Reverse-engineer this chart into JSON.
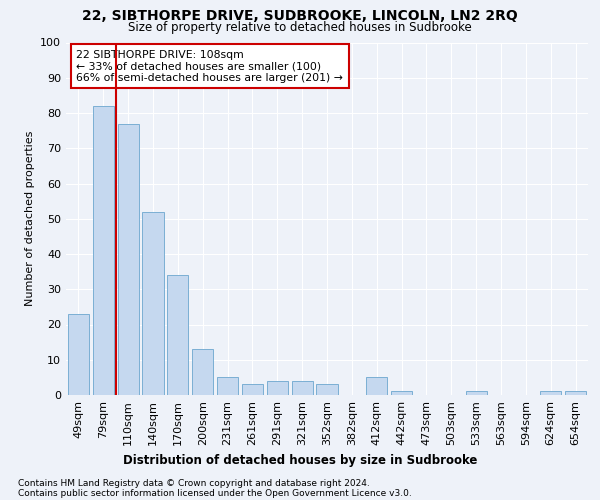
{
  "title": "22, SIBTHORPE DRIVE, SUDBROOKE, LINCOLN, LN2 2RQ",
  "subtitle": "Size of property relative to detached houses in Sudbrooke",
  "xlabel": "Distribution of detached houses by size in Sudbrooke",
  "ylabel": "Number of detached properties",
  "categories": [
    "49sqm",
    "79sqm",
    "110sqm",
    "140sqm",
    "170sqm",
    "200sqm",
    "231sqm",
    "261sqm",
    "291sqm",
    "321sqm",
    "352sqm",
    "382sqm",
    "412sqm",
    "442sqm",
    "473sqm",
    "503sqm",
    "533sqm",
    "563sqm",
    "594sqm",
    "624sqm",
    "654sqm"
  ],
  "values": [
    23,
    82,
    77,
    52,
    34,
    13,
    5,
    3,
    4,
    4,
    3,
    0,
    5,
    1,
    0,
    0,
    1,
    0,
    0,
    1,
    1
  ],
  "bar_color": "#c5d8ef",
  "bar_edge_color": "#7bafd4",
  "vline_color": "#cc0000",
  "annotation_line1": "22 SIBTHORPE DRIVE: 108sqm",
  "annotation_line2": "← 33% of detached houses are smaller (100)",
  "annotation_line3": "66% of semi-detached houses are larger (201) →",
  "annotation_box_color": "#ffffff",
  "annotation_box_edge_color": "#cc0000",
  "footer_line1": "Contains HM Land Registry data © Crown copyright and database right 2024.",
  "footer_line2": "Contains public sector information licensed under the Open Government Licence v3.0.",
  "ylim": [
    0,
    100
  ],
  "background_color": "#eef2f9"
}
